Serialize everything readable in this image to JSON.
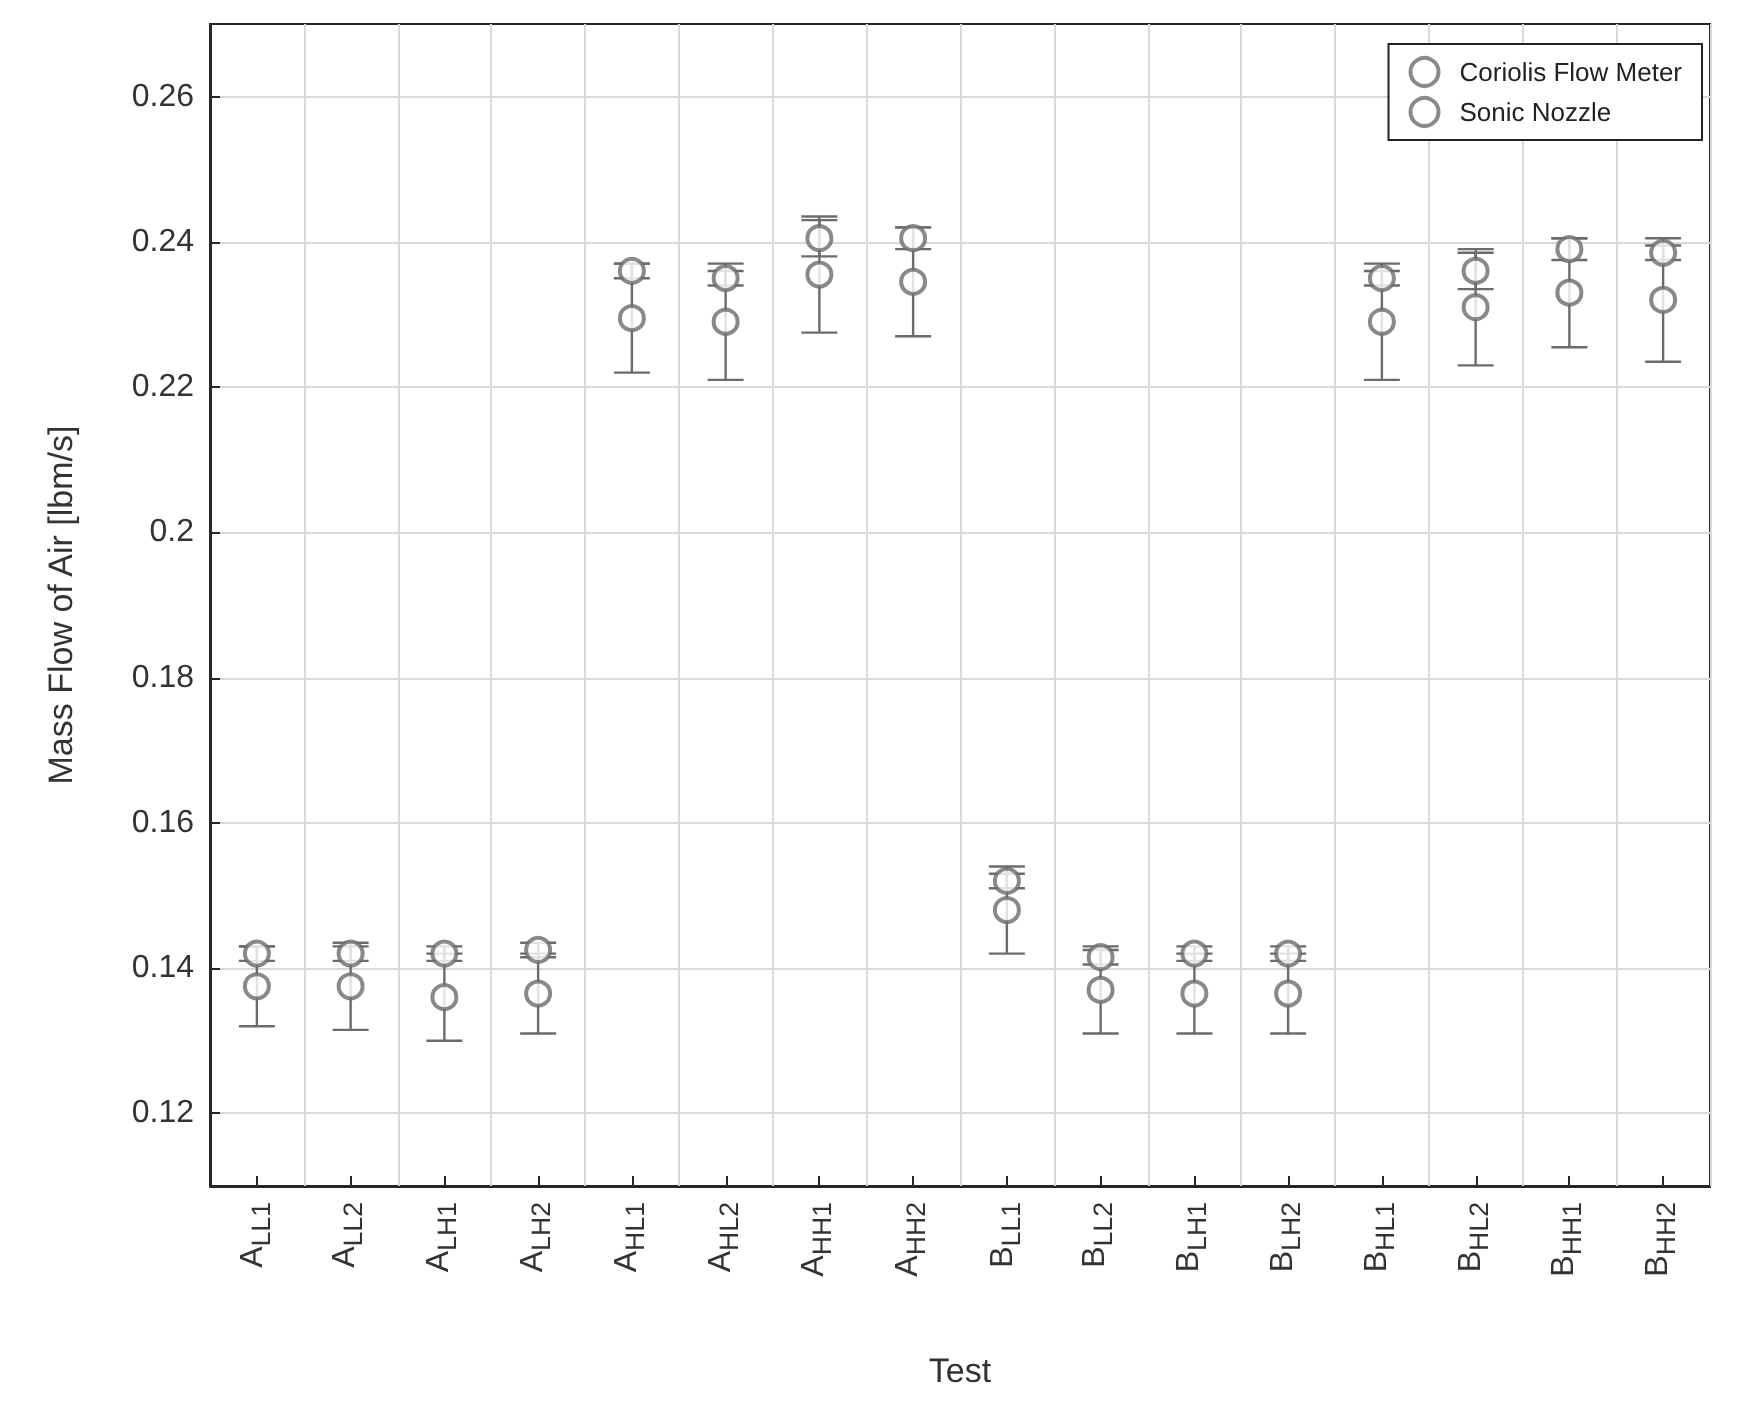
{
  "chart_data": {
    "type": "scatter",
    "xlabel": "Test",
    "ylabel": "Mass Flow of Air [lbm/s]",
    "categories": [
      "A$_{LL1}$",
      "A$_{LL2}$",
      "A$_{LH1}$",
      "A$_{LH2}$",
      "A$_{HL1}$",
      "A$_{HL2}$",
      "A$_{HH1}$",
      "A$_{HH2}$",
      "B$_{LL1}$",
      "B$_{LL2}$",
      "B$_{LH1}$",
      "B$_{LH2}$",
      "B$_{HL1}$",
      "B$_{HL2}$",
      "B$_{HH1}$",
      "B$_{HH2}$"
    ],
    "series": [
      {
        "name": "Coriolis Flow Meter",
        "color": "#6b6b6b",
        "values": [
          0.142,
          0.142,
          0.142,
          0.1425,
          0.236,
          0.235,
          0.2405,
          0.2405,
          0.152,
          0.1415,
          0.142,
          0.142,
          0.235,
          0.236,
          0.239,
          0.2385
        ],
        "errors": [
          0.001,
          0.001,
          0.001,
          0.001,
          0.001,
          0.001,
          0.0025,
          0.0015,
          0.001,
          0.001,
          0.001,
          0.001,
          0.001,
          0.0025,
          0.0015,
          0.001
        ]
      },
      {
        "name": "Sonic Nozzle",
        "color": "#6b6b6b",
        "values": [
          0.1375,
          0.1375,
          0.136,
          0.1365,
          0.2295,
          0.229,
          0.2355,
          0.2345,
          0.148,
          0.137,
          0.1365,
          0.1365,
          0.229,
          0.231,
          0.233,
          0.232
        ],
        "errors": [
          0.0055,
          0.006,
          0.006,
          0.0055,
          0.0075,
          0.008,
          0.008,
          0.0075,
          0.006,
          0.006,
          0.0055,
          0.0055,
          0.008,
          0.008,
          0.0075,
          0.0085
        ]
      }
    ],
    "ylim": [
      0.11,
      0.27
    ],
    "yticks": [
      0.12,
      0.14,
      0.16,
      0.18,
      0.2,
      0.22,
      0.24,
      0.26
    ],
    "grid": true,
    "legend": "top right",
    "marker": "circle"
  }
}
